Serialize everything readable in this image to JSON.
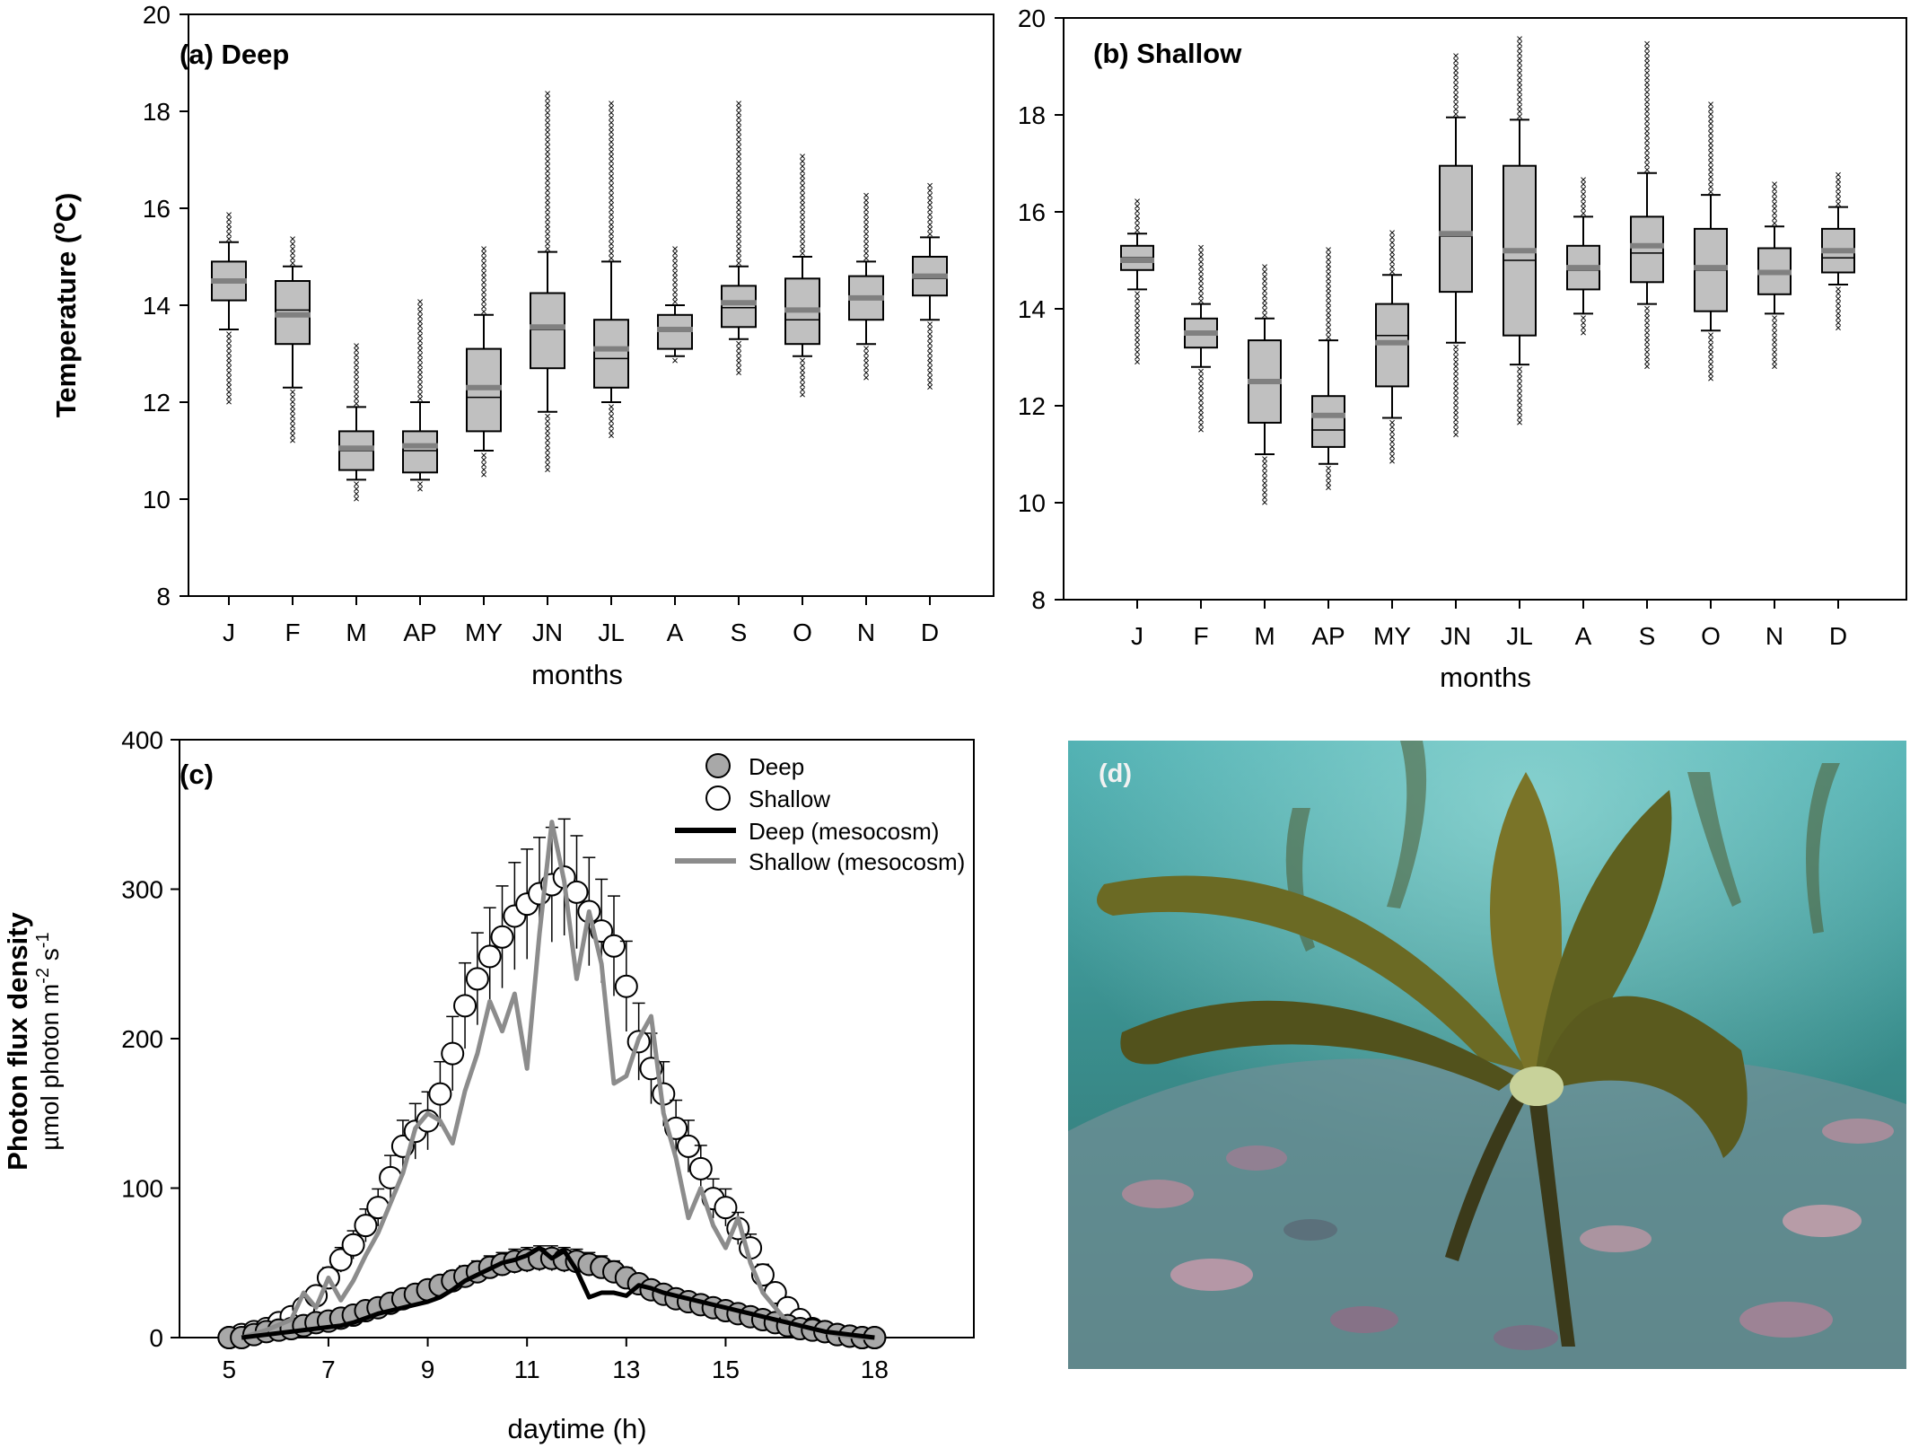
{
  "colors": {
    "box_fill": "#c0c0c0",
    "mean_line": "#808080",
    "deep_marker": "#a8a8a8",
    "deep_line": "#000000",
    "shallow_line": "#8c8c8c",
    "photo_water": "#3f8f8c",
    "kelp": "#6b6a24"
  },
  "chart_data": [
    {
      "panel": "a",
      "type": "box",
      "title": "(a) Deep",
      "xlabel": "months",
      "ylabel": "Temperature (°C)",
      "ylabel_parts": {
        "pre": "Temperature (",
        "sup": "o",
        "post": "C)"
      },
      "ylim": [
        8,
        20
      ],
      "yticks": [
        8,
        10,
        12,
        14,
        16,
        18,
        20
      ],
      "categories": [
        "J",
        "F",
        "M",
        "AP",
        "MY",
        "JN",
        "JL",
        "A",
        "S",
        "O",
        "N",
        "D"
      ],
      "boxes": [
        {
          "min": 12.0,
          "whislo": 13.5,
          "q1": 14.1,
          "med": 14.5,
          "mean": 14.5,
          "q3": 14.9,
          "whishi": 15.3,
          "max": 15.9
        },
        {
          "min": 11.2,
          "whislo": 12.3,
          "q1": 13.2,
          "med": 13.9,
          "mean": 13.8,
          "q3": 14.5,
          "whishi": 14.8,
          "max": 15.4
        },
        {
          "min": 10.0,
          "whislo": 10.4,
          "q1": 10.6,
          "med": 11.0,
          "mean": 11.05,
          "q3": 11.4,
          "whishi": 11.9,
          "max": 13.2
        },
        {
          "min": 10.2,
          "whislo": 10.4,
          "q1": 10.55,
          "med": 11.0,
          "mean": 11.1,
          "q3": 11.4,
          "whishi": 12.0,
          "max": 14.1
        },
        {
          "min": 10.5,
          "whislo": 11.0,
          "q1": 11.4,
          "med": 12.1,
          "mean": 12.3,
          "q3": 13.1,
          "whishi": 13.8,
          "max": 15.2
        },
        {
          "min": 10.6,
          "whislo": 11.8,
          "q1": 12.7,
          "med": 13.5,
          "mean": 13.55,
          "q3": 14.25,
          "whishi": 15.1,
          "max": 18.4
        },
        {
          "min": 11.3,
          "whislo": 12.0,
          "q1": 12.3,
          "med": 12.9,
          "mean": 13.1,
          "q3": 13.7,
          "whishi": 14.9,
          "max": 18.2
        },
        {
          "min": 12.85,
          "whislo": 12.95,
          "q1": 13.1,
          "med": 13.5,
          "mean": 13.5,
          "q3": 13.8,
          "whishi": 14.0,
          "max": 15.2
        },
        {
          "min": 12.6,
          "whislo": 13.3,
          "q1": 13.55,
          "med": 13.95,
          "mean": 14.05,
          "q3": 14.4,
          "whishi": 14.8,
          "max": 18.2
        },
        {
          "min": 12.1,
          "whislo": 12.95,
          "q1": 13.2,
          "med": 13.7,
          "mean": 13.9,
          "q3": 14.55,
          "whishi": 15.0,
          "max": 17.1
        },
        {
          "min": 12.5,
          "whislo": 13.2,
          "q1": 13.7,
          "med": 14.15,
          "mean": 14.15,
          "q3": 14.6,
          "whishi": 14.9,
          "max": 16.3
        },
        {
          "min": 12.3,
          "whislo": 13.7,
          "q1": 14.2,
          "med": 14.55,
          "mean": 14.6,
          "q3": 15.0,
          "whishi": 15.4,
          "max": 16.5
        }
      ]
    },
    {
      "panel": "b",
      "type": "box",
      "title": "(b) Shallow",
      "xlabel": "months",
      "ylabel": "",
      "ylim": [
        8,
        20
      ],
      "yticks": [
        8,
        10,
        12,
        14,
        16,
        18,
        20
      ],
      "categories": [
        "J",
        "F",
        "M",
        "AP",
        "MY",
        "JN",
        "JL",
        "A",
        "S",
        "O",
        "N",
        "D"
      ],
      "boxes": [
        {
          "min": 12.9,
          "whislo": 14.4,
          "q1": 14.8,
          "med": 15.05,
          "mean": 15.0,
          "q3": 15.3,
          "whishi": 15.55,
          "max": 16.3
        },
        {
          "min": 11.5,
          "whislo": 12.8,
          "q1": 13.2,
          "med": 13.5,
          "mean": 13.5,
          "q3": 13.8,
          "whishi": 14.1,
          "max": 15.3
        },
        {
          "min": 10.0,
          "whislo": 11.0,
          "q1": 11.65,
          "med": 12.5,
          "mean": 12.5,
          "q3": 13.35,
          "whishi": 13.8,
          "max": 14.9
        },
        {
          "min": 10.3,
          "whislo": 10.8,
          "q1": 11.15,
          "med": 11.5,
          "mean": 11.8,
          "q3": 12.2,
          "whishi": 13.35,
          "max": 15.3
        },
        {
          "min": 10.8,
          "whislo": 11.75,
          "q1": 12.4,
          "med": 13.45,
          "mean": 13.3,
          "q3": 14.1,
          "whishi": 14.7,
          "max": 15.6
        },
        {
          "min": 11.4,
          "whislo": 13.3,
          "q1": 14.35,
          "med": 15.5,
          "mean": 15.55,
          "q3": 16.95,
          "whishi": 17.95,
          "max": 19.3
        },
        {
          "min": 11.6,
          "whislo": 12.85,
          "q1": 13.45,
          "med": 15.0,
          "mean": 15.2,
          "q3": 16.95,
          "whishi": 17.9,
          "max": 19.6
        },
        {
          "min": 13.5,
          "whislo": 13.9,
          "q1": 14.4,
          "med": 14.8,
          "mean": 14.85,
          "q3": 15.3,
          "whishi": 15.9,
          "max": 16.7
        },
        {
          "min": 12.8,
          "whislo": 14.1,
          "q1": 14.55,
          "med": 15.15,
          "mean": 15.3,
          "q3": 15.9,
          "whishi": 16.8,
          "max": 19.5
        },
        {
          "min": 12.5,
          "whislo": 13.55,
          "q1": 13.95,
          "med": 14.8,
          "mean": 14.85,
          "q3": 15.65,
          "whishi": 16.35,
          "max": 18.3
        },
        {
          "min": 12.8,
          "whislo": 13.9,
          "q1": 14.3,
          "med": 14.75,
          "mean": 14.75,
          "q3": 15.25,
          "whishi": 15.7,
          "max": 16.6
        },
        {
          "min": 13.6,
          "whislo": 14.5,
          "q1": 14.75,
          "med": 15.05,
          "mean": 15.2,
          "q3": 15.65,
          "whishi": 16.1,
          "max": 16.8
        }
      ]
    },
    {
      "panel": "c",
      "type": "line",
      "title": "(c)",
      "xlabel": "daytime (h)",
      "ylabel": "Photon flux density",
      "ylabel_unit_parts": {
        "a": "µmol photon m",
        "sup1": "-2",
        "b": " s",
        "sup2": "-1"
      },
      "xlim": [
        4,
        20
      ],
      "xticks": [
        5,
        7,
        9,
        11,
        13,
        15,
        18
      ],
      "ylim": [
        0,
        400
      ],
      "yticks": [
        0,
        100,
        200,
        300,
        400
      ],
      "legend": {
        "placement": "top-right",
        "entries": [
          "Deep",
          "Shallow",
          "Deep (mesocosm)",
          "Shallow (mesocosm)"
        ]
      },
      "series": [
        {
          "name": "Deep",
          "style": "filled-circle",
          "x": [
            5.0,
            5.25,
            5.5,
            5.75,
            6.0,
            6.25,
            6.5,
            6.75,
            7.0,
            7.25,
            7.5,
            7.75,
            8.0,
            8.25,
            8.5,
            8.75,
            9.0,
            9.25,
            9.5,
            9.75,
            10.0,
            10.25,
            10.5,
            10.75,
            11.0,
            11.25,
            11.5,
            11.75,
            12.0,
            12.25,
            12.5,
            12.75,
            13.0,
            13.25,
            13.5,
            13.75,
            14.0,
            14.25,
            14.5,
            14.75,
            15.0,
            15.25,
            15.5,
            15.75,
            16.0,
            16.25,
            16.5,
            16.75,
            17.0,
            17.25,
            17.5,
            17.75,
            18.0
          ],
          "y": [
            0,
            0,
            2,
            4,
            5,
            6,
            8,
            10,
            11,
            13,
            15,
            18,
            20,
            23,
            26,
            29,
            32,
            35,
            38,
            41,
            44,
            47,
            49,
            51,
            52,
            53,
            53,
            52,
            51,
            49,
            47,
            44,
            40,
            36,
            32,
            29,
            26,
            24,
            22,
            20,
            18,
            16,
            14,
            12,
            10,
            8,
            6,
            5,
            4,
            2,
            1,
            0,
            0
          ]
        },
        {
          "name": "Shallow",
          "style": "open-circle",
          "x": [
            5.0,
            5.25,
            5.5,
            5.75,
            6.0,
            6.25,
            6.5,
            6.75,
            7.0,
            7.25,
            7.5,
            7.75,
            8.0,
            8.25,
            8.5,
            8.75,
            9.0,
            9.25,
            9.5,
            9.75,
            10.0,
            10.25,
            10.5,
            10.75,
            11.0,
            11.25,
            11.5,
            11.75,
            12.0,
            12.25,
            12.5,
            12.75,
            13.0,
            13.25,
            13.5,
            13.75,
            14.0,
            14.25,
            14.5,
            14.75,
            15.0,
            15.25,
            15.5,
            15.75,
            16.0,
            16.25,
            16.5,
            16.75,
            17.0,
            17.25,
            17.5,
            17.75,
            18.0
          ],
          "y": [
            0,
            2,
            4,
            6,
            10,
            14,
            20,
            28,
            40,
            52,
            62,
            75,
            87,
            107,
            128,
            138,
            145,
            163,
            190,
            222,
            240,
            255,
            268,
            282,
            290,
            297,
            303,
            308,
            298,
            285,
            272,
            262,
            235,
            198,
            180,
            163,
            140,
            128,
            113,
            93,
            87,
            73,
            60,
            42,
            30,
            20,
            12,
            6,
            4,
            2,
            1,
            0,
            0
          ]
        },
        {
          "name": "Deep (mesocosm)",
          "style": "line",
          "x": [
            5.25,
            5.75,
            6.25,
            6.75,
            7.25,
            7.5,
            7.75,
            8.0,
            8.25,
            8.5,
            8.75,
            9.0,
            9.25,
            9.5,
            9.75,
            10.0,
            10.25,
            10.5,
            10.75,
            11.0,
            11.25,
            11.5,
            11.75,
            12.0,
            12.25,
            12.5,
            12.75,
            13.0,
            13.25,
            13.5,
            13.75,
            14.0,
            14.25,
            14.5,
            14.75,
            15.0,
            15.25,
            15.5,
            15.75,
            16.0,
            16.25,
            16.5,
            16.75,
            17.0,
            17.25,
            17.5,
            17.75,
            18.0
          ],
          "y": [
            0,
            2,
            4,
            6,
            8,
            10,
            13,
            16,
            18,
            20,
            22,
            24,
            27,
            32,
            38,
            42,
            46,
            50,
            52,
            55,
            60,
            53,
            58,
            45,
            27,
            30,
            30,
            28,
            35,
            33,
            30,
            28,
            26,
            24,
            22,
            20,
            18,
            16,
            14,
            12,
            10,
            8,
            6,
            4,
            3,
            2,
            1,
            0
          ]
        },
        {
          "name": "Shallow (mesocosm)",
          "style": "line",
          "x": [
            5.25,
            5.75,
            6.25,
            6.5,
            6.75,
            7.0,
            7.25,
            7.5,
            7.75,
            8.0,
            8.25,
            8.5,
            8.75,
            9.0,
            9.25,
            9.5,
            9.75,
            10.0,
            10.25,
            10.5,
            10.75,
            11.0,
            11.25,
            11.5,
            11.75,
            12.0,
            12.25,
            12.5,
            12.75,
            13.0,
            13.25,
            13.5,
            13.75,
            14.0,
            14.25,
            14.5,
            14.75,
            15.0,
            15.25,
            15.5,
            15.75,
            16.0,
            16.25,
            16.5,
            16.75,
            17.0,
            17.25,
            17.5,
            17.75,
            18.0
          ],
          "y": [
            0,
            5,
            12,
            30,
            20,
            40,
            25,
            38,
            55,
            70,
            90,
            110,
            140,
            150,
            145,
            130,
            165,
            190,
            225,
            205,
            230,
            180,
            270,
            345,
            305,
            240,
            285,
            250,
            170,
            175,
            200,
            215,
            150,
            120,
            80,
            100,
            75,
            60,
            80,
            50,
            30,
            20,
            10,
            8,
            6,
            4,
            2,
            1,
            0,
            0
          ]
        }
      ]
    }
  ],
  "photo": {
    "panel_label": "(d)"
  }
}
